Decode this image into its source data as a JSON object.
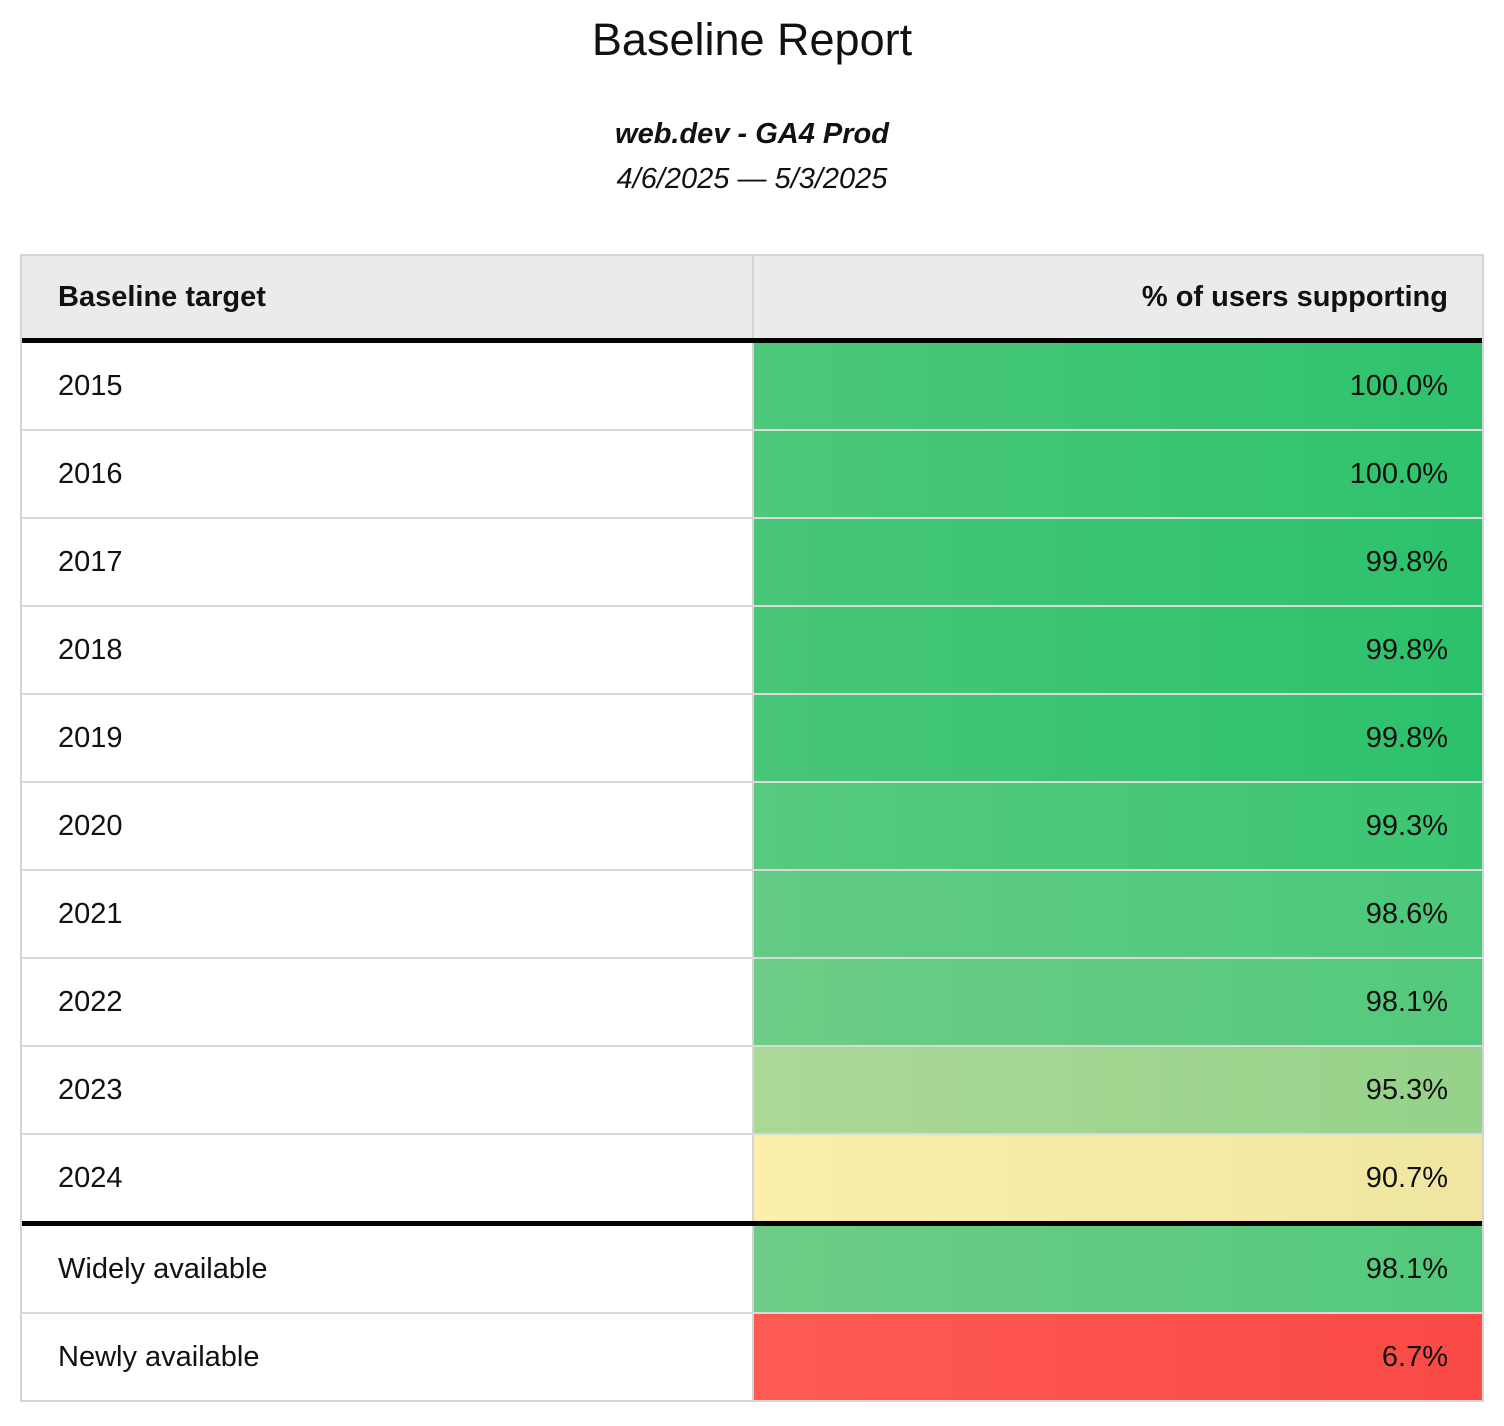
{
  "page": {
    "title": "Baseline Report",
    "subtitle": "web.dev - GA4 Prod",
    "date_range": "4/6/2025 — 5/3/2025"
  },
  "table": {
    "columns": [
      "Baseline target",
      "% of users supporting"
    ],
    "rows": [
      {
        "label": "2015",
        "value": "100.0%",
        "color_left": "#4cc878",
        "color_right": "#2ec26d",
        "section_break": false
      },
      {
        "label": "2016",
        "value": "100.0%",
        "color_left": "#4cc878",
        "color_right": "#2ec26d",
        "section_break": false
      },
      {
        "label": "2017",
        "value": "99.8%",
        "color_left": "#48c776",
        "color_right": "#2cc16c",
        "section_break": false
      },
      {
        "label": "2018",
        "value": "99.8%",
        "color_left": "#48c776",
        "color_right": "#2cc16c",
        "section_break": false
      },
      {
        "label": "2019",
        "value": "99.8%",
        "color_left": "#48c776",
        "color_right": "#2cc16c",
        "section_break": false
      },
      {
        "label": "2020",
        "value": "99.3%",
        "color_left": "#57ca7d",
        "color_right": "#3ac572",
        "section_break": false
      },
      {
        "label": "2021",
        "value": "98.6%",
        "color_left": "#64cb83",
        "color_right": "#4ac87a",
        "section_break": false
      },
      {
        "label": "2022",
        "value": "98.1%",
        "color_left": "#6ecd86",
        "color_right": "#52c97c",
        "section_break": false
      },
      {
        "label": "2023",
        "value": "95.3%",
        "color_left": "#abd897",
        "color_right": "#95d28a",
        "section_break": false
      },
      {
        "label": "2024",
        "value": "90.7%",
        "color_left": "#fceeab",
        "color_right": "#efe6a2",
        "section_break": false
      },
      {
        "label": "Widely available",
        "value": "98.1%",
        "color_left": "#6ecd86",
        "color_right": "#52c97c",
        "section_break": true
      },
      {
        "label": "Newly available",
        "value": "6.7%",
        "color_left": "#ff5a54",
        "color_right": "#f94a45",
        "section_break": false
      }
    ],
    "colors": {
      "header_bg": "#ebebeb",
      "row_border": "#d9d9d9",
      "section_divider": "#000000",
      "text": "#111111"
    }
  },
  "chart_data": {
    "type": "table",
    "title": "Baseline Report",
    "subtitle": "web.dev - GA4 Prod",
    "date_range": "4/6/2025 — 5/3/2025",
    "columns": [
      "Baseline target",
      "% of users supporting"
    ],
    "categories": [
      "2015",
      "2016",
      "2017",
      "2018",
      "2019",
      "2020",
      "2021",
      "2022",
      "2023",
      "2024",
      "Widely available",
      "Newly available"
    ],
    "values": [
      100.0,
      100.0,
      99.8,
      99.8,
      99.8,
      99.3,
      98.6,
      98.1,
      95.3,
      90.7,
      98.1,
      6.7
    ],
    "value_unit": "%",
    "color_scale": {
      "high": "#2ec26d",
      "mid": "#f3e8a6",
      "low": "#ff5a54"
    }
  }
}
